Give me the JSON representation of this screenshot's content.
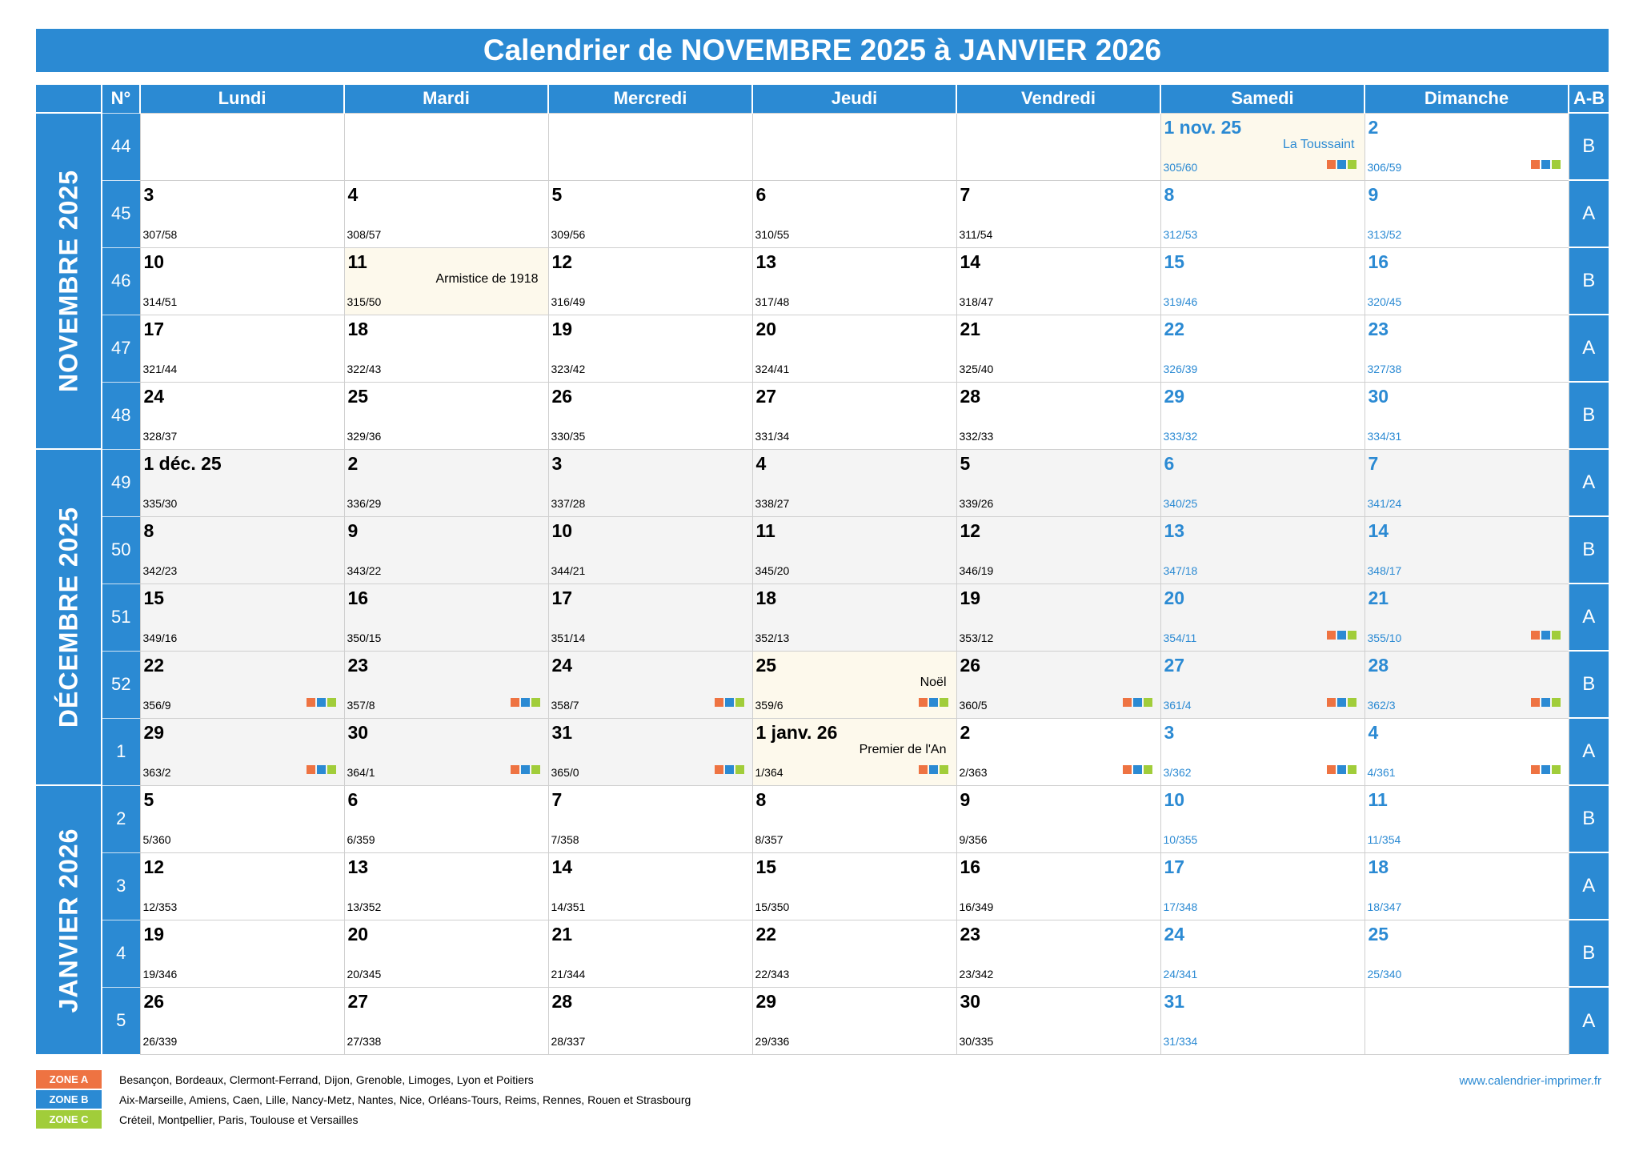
{
  "title": "Calendrier de NOVEMBRE 2025 à JANVIER 2026",
  "header": {
    "wk_label": "N°",
    "days": [
      "Lundi",
      "Mardi",
      "Mercredi",
      "Jeudi",
      "Vendredi",
      "Samedi",
      "Dimanche"
    ],
    "ab_label": "A-B"
  },
  "months": [
    {
      "label": "NOVEMBRE 2025",
      "rows": 5
    },
    {
      "label": "DÉCEMBRE 2025",
      "rows": 5
    },
    {
      "label": "JANVIER 2026",
      "rows": 4
    }
  ],
  "weeks": [
    {
      "wk": "44",
      "ab": "B",
      "days": [
        null,
        null,
        null,
        null,
        null,
        {
          "n": "1 nov. 25",
          "o": "305/60",
          "h": "La Toussaint",
          "z": true
        },
        {
          "n": "2",
          "o": "306/59",
          "z": true
        }
      ]
    },
    {
      "wk": "45",
      "ab": "A",
      "days": [
        {
          "n": "3",
          "o": "307/58"
        },
        {
          "n": "4",
          "o": "308/57"
        },
        {
          "n": "5",
          "o": "309/56"
        },
        {
          "n": "6",
          "o": "310/55"
        },
        {
          "n": "7",
          "o": "311/54"
        },
        {
          "n": "8",
          "o": "312/53"
        },
        {
          "n": "9",
          "o": "313/52"
        }
      ]
    },
    {
      "wk": "46",
      "ab": "B",
      "days": [
        {
          "n": "10",
          "o": "314/51"
        },
        {
          "n": "11",
          "o": "315/50",
          "h": "Armistice de 1918"
        },
        {
          "n": "12",
          "o": "316/49"
        },
        {
          "n": "13",
          "o": "317/48"
        },
        {
          "n": "14",
          "o": "318/47"
        },
        {
          "n": "15",
          "o": "319/46"
        },
        {
          "n": "16",
          "o": "320/45"
        }
      ]
    },
    {
      "wk": "47",
      "ab": "A",
      "days": [
        {
          "n": "17",
          "o": "321/44"
        },
        {
          "n": "18",
          "o": "322/43"
        },
        {
          "n": "19",
          "o": "323/42"
        },
        {
          "n": "20",
          "o": "324/41"
        },
        {
          "n": "21",
          "o": "325/40"
        },
        {
          "n": "22",
          "o": "326/39"
        },
        {
          "n": "23",
          "o": "327/38"
        }
      ]
    },
    {
      "wk": "48",
      "ab": "B",
      "days": [
        {
          "n": "24",
          "o": "328/37"
        },
        {
          "n": "25",
          "o": "329/36"
        },
        {
          "n": "26",
          "o": "330/35"
        },
        {
          "n": "27",
          "o": "331/34"
        },
        {
          "n": "28",
          "o": "332/33"
        },
        {
          "n": "29",
          "o": "333/32"
        },
        {
          "n": "30",
          "o": "334/31"
        }
      ]
    },
    {
      "wk": "49",
      "ab": "A",
      "days": [
        {
          "n": "1 déc. 25",
          "o": "335/30",
          "m": "dec"
        },
        {
          "n": "2",
          "o": "336/29",
          "m": "dec"
        },
        {
          "n": "3",
          "o": "337/28",
          "m": "dec"
        },
        {
          "n": "4",
          "o": "338/27",
          "m": "dec"
        },
        {
          "n": "5",
          "o": "339/26",
          "m": "dec"
        },
        {
          "n": "6",
          "o": "340/25",
          "m": "dec"
        },
        {
          "n": "7",
          "o": "341/24",
          "m": "dec"
        }
      ]
    },
    {
      "wk": "50",
      "ab": "B",
      "days": [
        {
          "n": "8",
          "o": "342/23",
          "m": "dec"
        },
        {
          "n": "9",
          "o": "343/22",
          "m": "dec"
        },
        {
          "n": "10",
          "o": "344/21",
          "m": "dec"
        },
        {
          "n": "11",
          "o": "345/20",
          "m": "dec"
        },
        {
          "n": "12",
          "o": "346/19",
          "m": "dec"
        },
        {
          "n": "13",
          "o": "347/18",
          "m": "dec"
        },
        {
          "n": "14",
          "o": "348/17",
          "m": "dec"
        }
      ]
    },
    {
      "wk": "51",
      "ab": "A",
      "days": [
        {
          "n": "15",
          "o": "349/16",
          "m": "dec"
        },
        {
          "n": "16",
          "o": "350/15",
          "m": "dec"
        },
        {
          "n": "17",
          "o": "351/14",
          "m": "dec"
        },
        {
          "n": "18",
          "o": "352/13",
          "m": "dec"
        },
        {
          "n": "19",
          "o": "353/12",
          "m": "dec"
        },
        {
          "n": "20",
          "o": "354/11",
          "m": "dec",
          "z": true
        },
        {
          "n": "21",
          "o": "355/10",
          "m": "dec",
          "z": true
        }
      ]
    },
    {
      "wk": "52",
      "ab": "B",
      "days": [
        {
          "n": "22",
          "o": "356/9",
          "m": "dec",
          "z": true
        },
        {
          "n": "23",
          "o": "357/8",
          "m": "dec",
          "z": true
        },
        {
          "n": "24",
          "o": "358/7",
          "m": "dec",
          "z": true
        },
        {
          "n": "25",
          "o": "359/6",
          "m": "dec",
          "h": "Noël",
          "z": true
        },
        {
          "n": "26",
          "o": "360/5",
          "m": "dec",
          "z": true
        },
        {
          "n": "27",
          "o": "361/4",
          "m": "dec",
          "z": true
        },
        {
          "n": "28",
          "o": "362/3",
          "m": "dec",
          "z": true
        }
      ]
    },
    {
      "wk": "1",
      "ab": "A",
      "days": [
        {
          "n": "29",
          "o": "363/2",
          "m": "dec",
          "z": true
        },
        {
          "n": "30",
          "o": "364/1",
          "m": "dec",
          "z": true
        },
        {
          "n": "31",
          "o": "365/0",
          "m": "dec",
          "z": true
        },
        {
          "n": "1 janv. 26",
          "o": "1/364",
          "h": "Premier de l'An",
          "z": true
        },
        {
          "n": "2",
          "o": "2/363",
          "z": true
        },
        {
          "n": "3",
          "o": "3/362",
          "z": true
        },
        {
          "n": "4",
          "o": "4/361",
          "z": true
        }
      ]
    },
    {
      "wk": "2",
      "ab": "B",
      "days": [
        {
          "n": "5",
          "o": "5/360"
        },
        {
          "n": "6",
          "o": "6/359"
        },
        {
          "n": "7",
          "o": "7/358"
        },
        {
          "n": "8",
          "o": "8/357"
        },
        {
          "n": "9",
          "o": "9/356"
        },
        {
          "n": "10",
          "o": "10/355"
        },
        {
          "n": "11",
          "o": "11/354"
        }
      ]
    },
    {
      "wk": "3",
      "ab": "A",
      "days": [
        {
          "n": "12",
          "o": "12/353"
        },
        {
          "n": "13",
          "o": "13/352"
        },
        {
          "n": "14",
          "o": "14/351"
        },
        {
          "n": "15",
          "o": "15/350"
        },
        {
          "n": "16",
          "o": "16/349"
        },
        {
          "n": "17",
          "o": "17/348"
        },
        {
          "n": "18",
          "o": "18/347"
        }
      ]
    },
    {
      "wk": "4",
      "ab": "B",
      "days": [
        {
          "n": "19",
          "o": "19/346"
        },
        {
          "n": "20",
          "o": "20/345"
        },
        {
          "n": "21",
          "o": "21/344"
        },
        {
          "n": "22",
          "o": "22/343"
        },
        {
          "n": "23",
          "o": "23/342"
        },
        {
          "n": "24",
          "o": "24/341"
        },
        {
          "n": "25",
          "o": "25/340"
        }
      ]
    },
    {
      "wk": "5",
      "ab": "A",
      "days": [
        {
          "n": "26",
          "o": "26/339"
        },
        {
          "n": "27",
          "o": "27/338"
        },
        {
          "n": "28",
          "o": "28/337"
        },
        {
          "n": "29",
          "o": "29/336"
        },
        {
          "n": "30",
          "o": "30/335"
        },
        {
          "n": "31",
          "o": "31/334"
        },
        null
      ]
    }
  ],
  "legend": [
    {
      "zone": "ZONE A",
      "color": "#ee7342",
      "cities": "Besançon, Bordeaux, Clermont-Ferrand, Dijon, Grenoble, Limoges, Lyon et Poitiers"
    },
    {
      "zone": "ZONE B",
      "color": "#2b8ad3",
      "cities": "Aix-Marseille, Amiens, Caen, Lille, Nancy-Metz, Nantes, Nice, Orléans-Tours, Reims, Rennes, Rouen et Strasbourg"
    },
    {
      "zone": "ZONE C",
      "color": "#a1cd3a",
      "cities": "Créteil, Montpellier, Paris, Toulouse et Versailles"
    }
  ],
  "website": "www.calendrier-imprimer.fr",
  "colors": {
    "accent": "#2b8ad3",
    "weekend_text": "#2b8ad3",
    "holiday_bg": "#fdf9ec",
    "december_bg": "#f4f4f4"
  }
}
